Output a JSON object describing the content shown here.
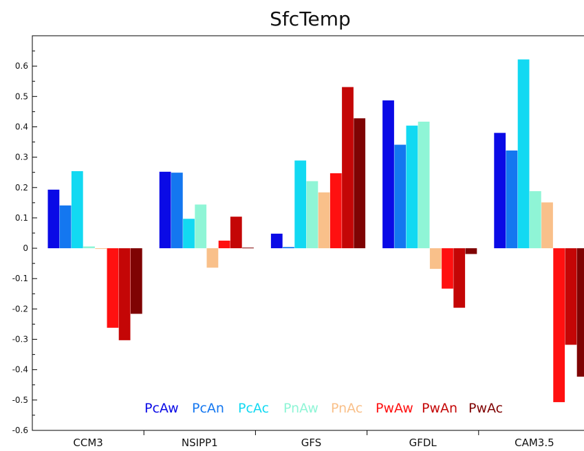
{
  "chart_data": {
    "type": "bar",
    "title": "SfcTemp",
    "xlabel": "",
    "ylabel": "",
    "categories": [
      "CCM3",
      "NSIPP1",
      "GFS",
      "GFDL",
      "CAM3.5"
    ],
    "ylim": [
      -0.6,
      0.7
    ],
    "yticks": [
      "0.6",
      "0.5",
      "0.4",
      "0.3",
      "0.2",
      "0.1",
      "0",
      "-0.1",
      "-0.2",
      "-0.3",
      "-0.4",
      "-0.5",
      "-0.6"
    ],
    "ytick_values": [
      0.6,
      0.5,
      0.4,
      0.3,
      0.2,
      0.1,
      0,
      -0.1,
      -0.2,
      -0.3,
      -0.4,
      -0.5,
      -0.6
    ],
    "grid": false,
    "legend_position": "bottom-right",
    "series": [
      {
        "name": "PcAw",
        "color": "#0a0ae6",
        "values": [
          0.193,
          0.252,
          0.048,
          0.487,
          0.38
        ]
      },
      {
        "name": "PcAn",
        "color": "#1477f0",
        "values": [
          0.141,
          0.249,
          0.004,
          0.341,
          0.322
        ]
      },
      {
        "name": "PcAc",
        "color": "#12d9f2",
        "values": [
          0.254,
          0.097,
          0.289,
          0.404,
          0.622
        ]
      },
      {
        "name": "PnAw",
        "color": "#8ff5d6",
        "values": [
          0.006,
          0.144,
          0.221,
          0.417,
          0.188
        ]
      },
      {
        "name": "PnAc",
        "color": "#f9c08a",
        "values": [
          -0.001,
          -0.064,
          0.184,
          -0.068,
          0.151
        ]
      },
      {
        "name": "PwAw",
        "color": "#ff1010",
        "values": [
          -0.262,
          0.025,
          0.247,
          -0.133,
          -0.507
        ]
      },
      {
        "name": "PwAn",
        "color": "#c40606",
        "values": [
          -0.303,
          0.104,
          0.531,
          -0.196,
          -0.318
        ]
      },
      {
        "name": "PwAc",
        "color": "#7f0303",
        "values": [
          -0.216,
          0.002,
          0.428,
          -0.019,
          -0.423
        ]
      }
    ]
  }
}
